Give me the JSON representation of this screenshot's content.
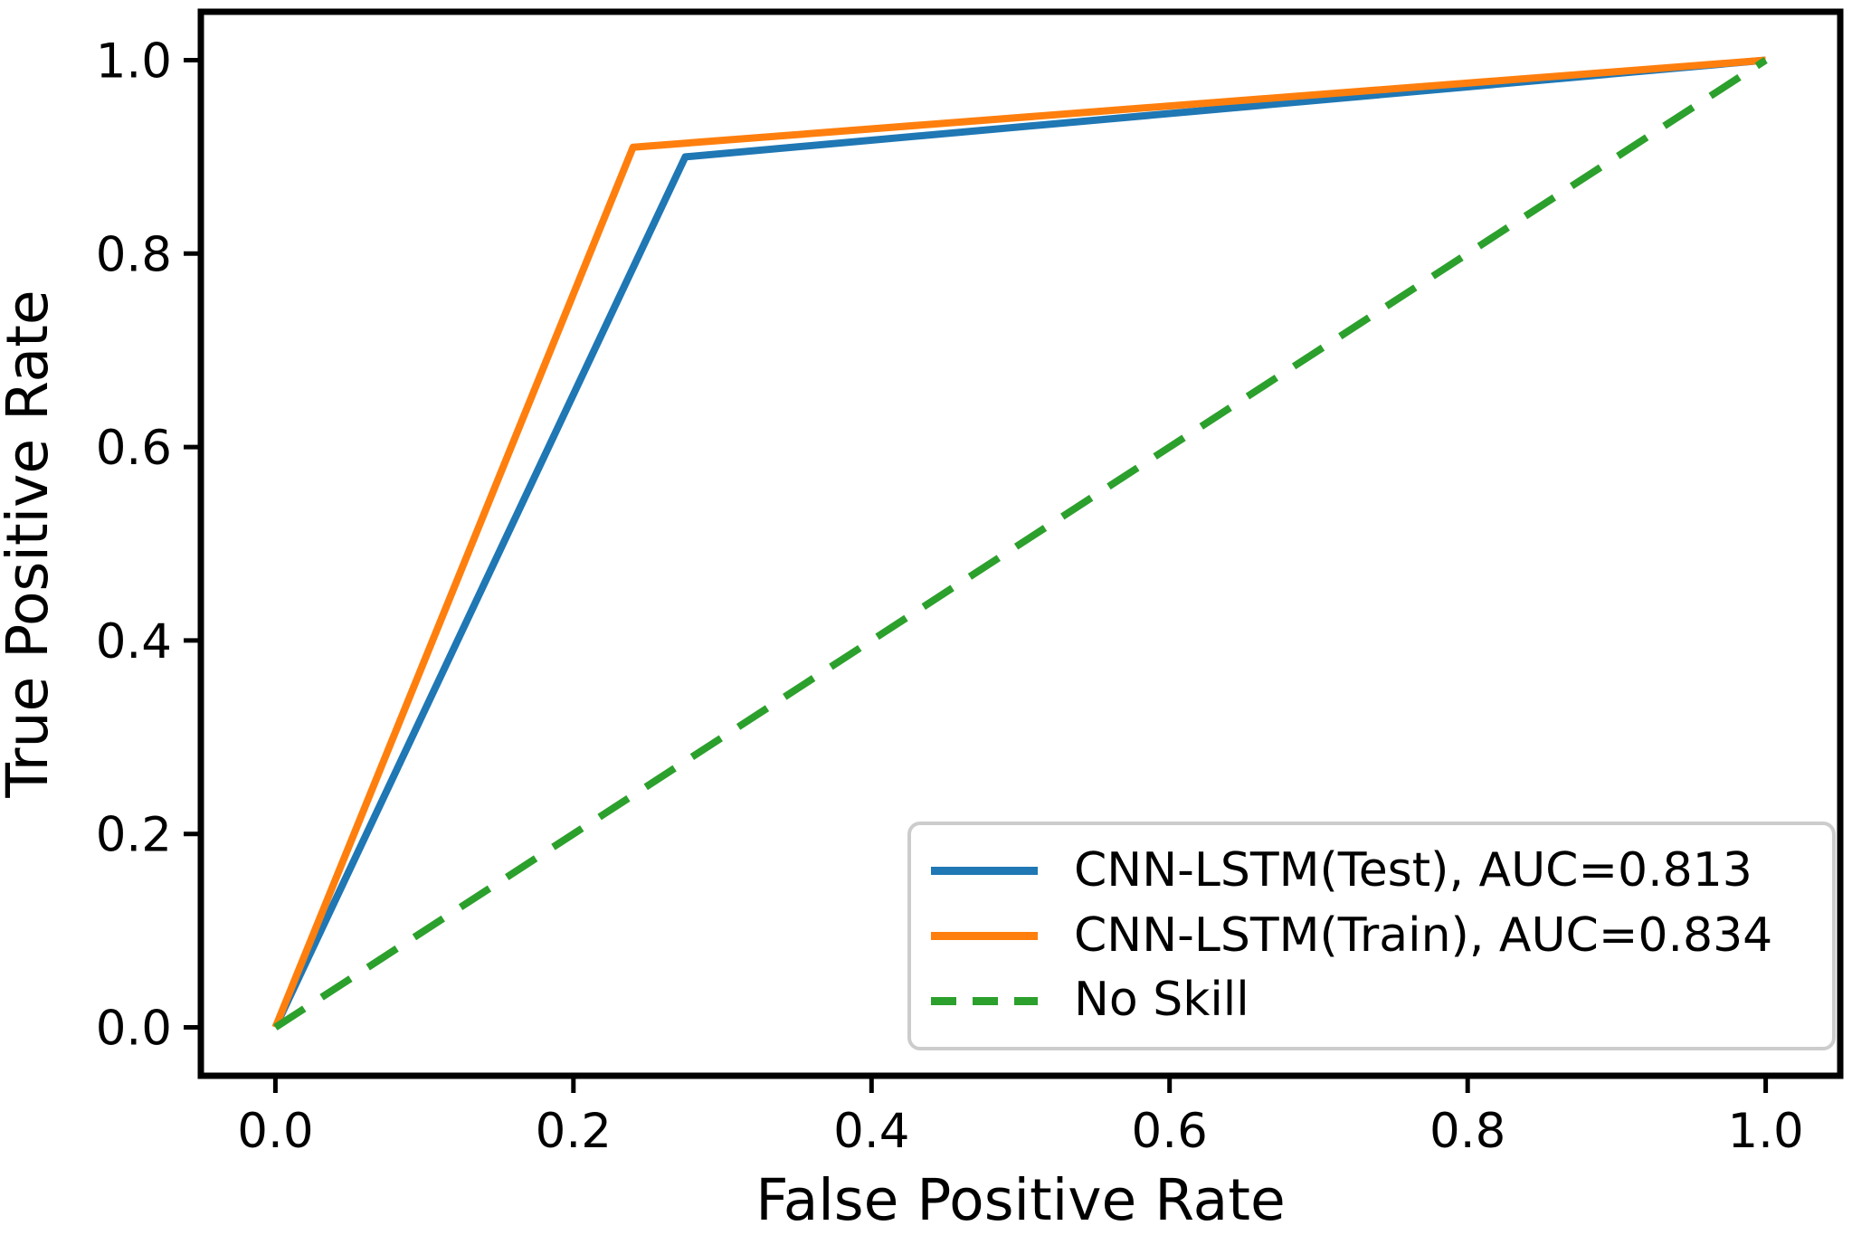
{
  "chart_data": {
    "type": "line",
    "title": "",
    "xlabel": "False Positive Rate",
    "ylabel": "True Positive Rate",
    "xlim": [
      -0.05,
      1.05
    ],
    "ylim": [
      -0.05,
      1.05
    ],
    "x_ticks": [
      "0.0",
      "0.2",
      "0.4",
      "0.6",
      "0.8",
      "1.0"
    ],
    "y_ticks": [
      "0.0",
      "0.2",
      "0.4",
      "0.6",
      "0.8",
      "1.0"
    ],
    "grid": false,
    "legend_position": "lower right",
    "axes_color": "#000000",
    "background_color": "#ffffff",
    "legend_border_color": "#cccccc",
    "series": [
      {
        "name": "CNN-LSTM(Test)",
        "label": "CNN-LSTM(Test), AUC=0.813",
        "auc": 0.813,
        "color": "#1f77b4",
        "style": "solid",
        "x": [
          0,
          0.275,
          1
        ],
        "y": [
          0,
          0.9,
          1
        ]
      },
      {
        "name": "CNN-LSTM(Train)",
        "label": "CNN-LSTM(Train), AUC=0.834",
        "auc": 0.834,
        "color": "#ff7f0e",
        "style": "solid",
        "x": [
          0,
          0.24,
          1
        ],
        "y": [
          0,
          0.91,
          1
        ]
      },
      {
        "name": "No Skill",
        "label": "No Skill",
        "color": "#2ca02c",
        "style": "dashed",
        "x": [
          0,
          1
        ],
        "y": [
          0,
          1
        ]
      }
    ]
  }
}
